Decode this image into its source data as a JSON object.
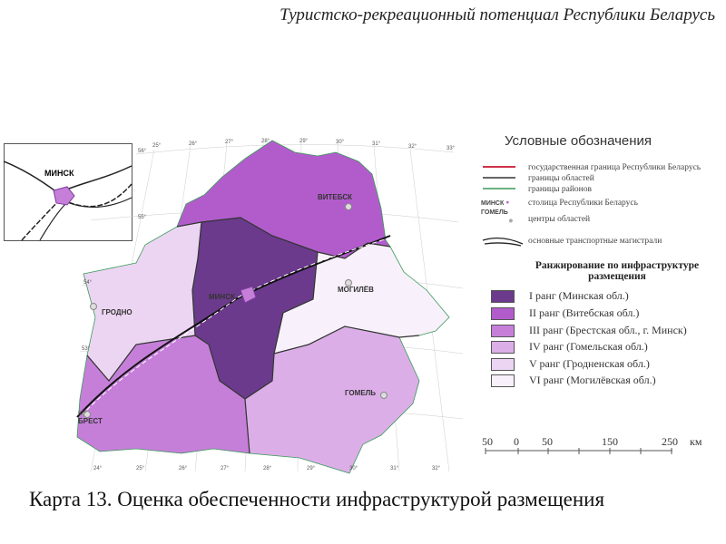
{
  "title": "Туристско-рекреационный потенциал Республики Беларусь",
  "caption": "Карта 13. Оценка обеспеченности инфраструктурой размещения",
  "legend": {
    "title": "Условные обозначения",
    "items": [
      {
        "label": "государственная граница Республики Беларусь",
        "color": "#d0304a"
      },
      {
        "label": "границы областей",
        "color": "#333333"
      },
      {
        "label": "границы районов",
        "color": "#3a9a5a"
      },
      {
        "label": "столица Республики Беларусь",
        "sample": "МИНСК"
      },
      {
        "label": "центры областей",
        "sample": "ГОМЕЛЬ"
      },
      {
        "label": "основные транспортные магистрали"
      }
    ],
    "ranking_title": "Ранжирование по инфраструктуре размещения",
    "ranks": [
      {
        "label": "I ранг (Минская обл.)",
        "color": "#6b3a8c"
      },
      {
        "label": "II ранг (Витебская обл.)",
        "color": "#b25ccc"
      },
      {
        "label": "III ранг (Брестская обл., г. Минск)",
        "color": "#c67fd9"
      },
      {
        "label": "IV ранг (Гомельская обл.)",
        "color": "#dcaee8"
      },
      {
        "label": "V ранг (Гродненская обл.)",
        "color": "#ecd5f2"
      },
      {
        "label": "VI ранг (Могилёвская обл.)",
        "color": "#f8f0fa"
      }
    ]
  },
  "scale": {
    "ticks": [
      "50",
      "0",
      "50",
      "150",
      "250"
    ],
    "unit": "км"
  },
  "cities": {
    "minsk": "МИНСК",
    "vitebsk": "ВИТЕБСК",
    "mogilev": "МОГИЛЁВ",
    "grodno": "ГРОДНО",
    "gomel": "ГОМЕЛЬ",
    "brest": "БРЕСТ"
  },
  "inset": {
    "label": "МИНСК"
  },
  "graticule": {
    "lon": [
      "25°",
      "26°",
      "27°",
      "28°",
      "29°",
      "30°",
      "31°",
      "32°",
      "33°"
    ],
    "lat": [
      "56°",
      "55°",
      "54°",
      "53°",
      "52°"
    ],
    "lon_bottom": [
      "24°",
      "25°",
      "26°",
      "27°",
      "28°",
      "29°",
      "30°",
      "31°",
      "32°"
    ]
  }
}
